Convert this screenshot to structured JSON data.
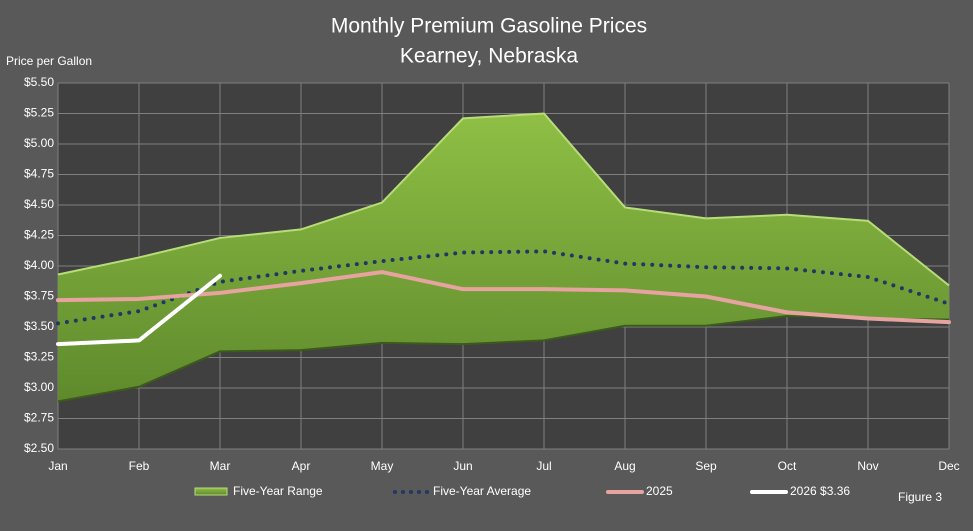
{
  "chart_data": {
    "type": "line",
    "title": [
      "Monthly Premium Gasoline Prices",
      "Kearney, Nebraska"
    ],
    "y_axis_label": "Price per Gallon",
    "figure_label": "Figure 3",
    "categories": [
      "Jan",
      "Feb",
      "Mar",
      "Apr",
      "May",
      "Jun",
      "Jul",
      "Aug",
      "Sep",
      "Oct",
      "Nov",
      "Dec"
    ],
    "range": {
      "name": "Five-Year Range",
      "color": "#7ea63c",
      "high": [
        3.93,
        4.07,
        4.23,
        4.3,
        4.52,
        5.21,
        5.25,
        4.48,
        4.39,
        4.42,
        4.37,
        3.84
      ],
      "low": [
        2.89,
        3.01,
        3.3,
        3.31,
        3.37,
        3.36,
        3.39,
        3.51,
        3.51,
        3.59,
        3.57,
        3.56
      ]
    },
    "series": [
      {
        "name": "Five-Year Average",
        "color": "#1f3864",
        "style": "dotted",
        "values": [
          3.53,
          3.63,
          3.87,
          3.96,
          4.04,
          4.11,
          4.12,
          4.02,
          3.99,
          3.98,
          3.91,
          3.69
        ]
      },
      {
        "name": "2025",
        "color": "#e6a3a0",
        "style": "solid",
        "values": [
          3.72,
          3.73,
          3.78,
          3.86,
          3.95,
          3.81,
          3.81,
          3.8,
          3.75,
          3.62,
          3.57,
          3.54
        ]
      },
      {
        "name": "2026 $3.36",
        "color": "#ffffff",
        "style": "solid",
        "values": [
          3.36,
          3.39,
          3.92,
          null,
          null,
          null,
          null,
          null,
          null,
          null,
          null,
          null
        ]
      }
    ],
    "ylim": [
      2.5,
      5.5
    ],
    "yticks": [
      {
        "value": 2.5,
        "label": "$2.50"
      },
      {
        "value": 2.75,
        "label": "$2.75"
      },
      {
        "value": 3.0,
        "label": "$3.00"
      },
      {
        "value": 3.25,
        "label": "$3.25"
      },
      {
        "value": 3.5,
        "label": "$3.50"
      },
      {
        "value": 3.75,
        "label": "$3.75"
      },
      {
        "value": 4.0,
        "label": "$4.00"
      },
      {
        "value": 4.25,
        "label": "$4.25"
      },
      {
        "value": 4.5,
        "label": "$4.50"
      },
      {
        "value": 4.75,
        "label": "$4.75"
      },
      {
        "value": 5.0,
        "label": "$5.00"
      },
      {
        "value": 5.25,
        "label": "$5.25"
      },
      {
        "value": 5.5,
        "label": "$5.50"
      }
    ],
    "grid": true
  }
}
